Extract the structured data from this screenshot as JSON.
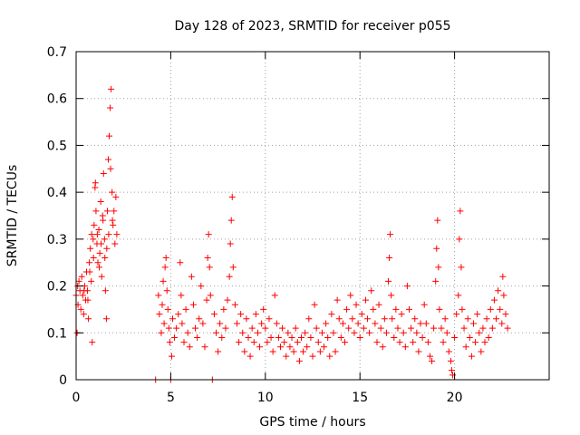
{
  "chart_data": {
    "type": "scatter",
    "title": "Day 128 of 2023, SRMTID for receiver p055",
    "xlabel": "GPS time / hours",
    "ylabel": "SRMTID / TECUs",
    "xlim": [
      0,
      25
    ],
    "ylim": [
      0,
      0.7
    ],
    "xticks": [
      0,
      5,
      10,
      15,
      20
    ],
    "yticks": [
      0,
      0.1,
      0.2,
      0.3,
      0.4,
      0.5,
      0.6,
      0.7
    ],
    "grid": true,
    "marker": "+",
    "color": "#ff0000",
    "series": [
      {
        "name": "SRMTID",
        "points": [
          [
            0.0,
            0.18
          ],
          [
            0.05,
            0.1
          ],
          [
            0.08,
            0.2
          ],
          [
            0.1,
            0.16
          ],
          [
            0.15,
            0.21
          ],
          [
            0.2,
            0.19
          ],
          [
            0.25,
            0.15
          ],
          [
            0.3,
            0.22
          ],
          [
            0.35,
            0.18
          ],
          [
            0.4,
            0.14
          ],
          [
            0.45,
            0.2
          ],
          [
            0.5,
            0.17
          ],
          [
            0.55,
            0.23
          ],
          [
            0.6,
            0.19
          ],
          [
            0.65,
            0.13
          ],
          [
            0.7,
            0.25
          ],
          [
            0.75,
            0.28
          ],
          [
            0.8,
            0.21
          ],
          [
            0.85,
            0.08
          ],
          [
            0.9,
            0.3
          ],
          [
            0.95,
            0.33
          ],
          [
            1.0,
            0.41
          ],
          [
            1.05,
            0.36
          ],
          [
            1.1,
            0.29
          ],
          [
            1.15,
            0.25
          ],
          [
            1.2,
            0.32
          ],
          [
            1.25,
            0.27
          ],
          [
            1.3,
            0.38
          ],
          [
            1.35,
            0.22
          ],
          [
            1.4,
            0.35
          ],
          [
            1.45,
            0.44
          ],
          [
            1.5,
            0.3
          ],
          [
            1.55,
            0.19
          ],
          [
            1.6,
            0.13
          ],
          [
            1.65,
            0.36
          ],
          [
            1.7,
            0.47
          ],
          [
            1.75,
            0.52
          ],
          [
            1.8,
            0.58
          ],
          [
            1.85,
            0.62
          ],
          [
            1.9,
            0.4
          ],
          [
            1.95,
            0.33
          ],
          [
            2.0,
            0.36
          ],
          [
            2.05,
            0.29
          ],
          [
            2.1,
            0.39
          ],
          [
            2.15,
            0.31
          ],
          [
            1.02,
            0.42
          ],
          [
            1.12,
            0.31
          ],
          [
            1.22,
            0.24
          ],
          [
            1.32,
            0.29
          ],
          [
            1.42,
            0.34
          ],
          [
            1.52,
            0.26
          ],
          [
            1.62,
            0.28
          ],
          [
            1.72,
            0.31
          ],
          [
            1.82,
            0.45
          ],
          [
            1.92,
            0.34
          ],
          [
            0.92,
            0.26
          ],
          [
            0.82,
            0.31
          ],
          [
            0.72,
            0.23
          ],
          [
            0.62,
            0.17
          ],
          [
            0.42,
            0.19
          ],
          [
            4.2,
            0.0
          ],
          [
            4.35,
            0.18
          ],
          [
            4.4,
            0.14
          ],
          [
            4.5,
            0.1
          ],
          [
            4.55,
            0.16
          ],
          [
            4.6,
            0.21
          ],
          [
            4.65,
            0.12
          ],
          [
            4.7,
            0.24
          ],
          [
            4.75,
            0.26
          ],
          [
            4.8,
            0.19
          ],
          [
            4.85,
            0.15
          ],
          [
            4.9,
            0.11
          ],
          [
            4.95,
            0.08
          ],
          [
            5.0,
            0.0
          ],
          [
            5.05,
            0.05
          ],
          [
            5.1,
            0.13
          ],
          [
            5.2,
            0.09
          ],
          [
            5.3,
            0.11
          ],
          [
            5.4,
            0.14
          ],
          [
            5.5,
            0.25
          ],
          [
            5.55,
            0.18
          ],
          [
            5.6,
            0.12
          ],
          [
            5.7,
            0.08
          ],
          [
            5.8,
            0.15
          ],
          [
            5.9,
            0.1
          ],
          [
            6.0,
            0.07
          ],
          [
            6.1,
            0.22
          ],
          [
            6.2,
            0.16
          ],
          [
            6.3,
            0.11
          ],
          [
            6.4,
            0.09
          ],
          [
            6.5,
            0.13
          ],
          [
            6.6,
            0.2
          ],
          [
            6.7,
            0.12
          ],
          [
            6.8,
            0.07
          ],
          [
            6.9,
            0.17
          ],
          [
            6.95,
            0.26
          ],
          [
            7.0,
            0.31
          ],
          [
            7.05,
            0.24
          ],
          [
            7.1,
            0.18
          ],
          [
            7.2,
            0.0
          ],
          [
            7.3,
            0.14
          ],
          [
            7.4,
            0.1
          ],
          [
            7.5,
            0.06
          ],
          [
            7.6,
            0.12
          ],
          [
            7.7,
            0.09
          ],
          [
            7.8,
            0.15
          ],
          [
            7.9,
            0.11
          ],
          [
            8.0,
            0.17
          ],
          [
            8.1,
            0.22
          ],
          [
            8.15,
            0.29
          ],
          [
            8.2,
            0.34
          ],
          [
            8.25,
            0.39
          ],
          [
            8.3,
            0.24
          ],
          [
            8.4,
            0.16
          ],
          [
            8.5,
            0.12
          ],
          [
            8.6,
            0.08
          ],
          [
            8.7,
            0.14
          ],
          [
            8.8,
            0.1
          ],
          [
            8.9,
            0.06
          ],
          [
            9.0,
            0.13
          ],
          [
            9.1,
            0.09
          ],
          [
            9.2,
            0.05
          ],
          [
            9.3,
            0.11
          ],
          [
            9.4,
            0.08
          ],
          [
            9.5,
            0.14
          ],
          [
            9.6,
            0.1
          ],
          [
            9.7,
            0.07
          ],
          [
            9.8,
            0.12
          ],
          [
            9.9,
            0.15
          ],
          [
            10.0,
            0.11
          ],
          [
            10.1,
            0.08
          ],
          [
            10.2,
            0.13
          ],
          [
            10.3,
            0.09
          ],
          [
            10.4,
            0.06
          ],
          [
            10.5,
            0.18
          ],
          [
            10.6,
            0.12
          ],
          [
            10.7,
            0.09
          ],
          [
            10.8,
            0.07
          ],
          [
            10.9,
            0.11
          ],
          [
            11.0,
            0.08
          ],
          [
            11.1,
            0.05
          ],
          [
            11.2,
            0.1
          ],
          [
            11.3,
            0.07
          ],
          [
            11.4,
            0.09
          ],
          [
            11.5,
            0.06
          ],
          [
            11.6,
            0.11
          ],
          [
            11.7,
            0.08
          ],
          [
            11.8,
            0.04
          ],
          [
            11.9,
            0.09
          ],
          [
            12.0,
            0.06
          ],
          [
            12.1,
            0.1
          ],
          [
            12.2,
            0.07
          ],
          [
            12.3,
            0.13
          ],
          [
            12.4,
            0.09
          ],
          [
            12.5,
            0.05
          ],
          [
            12.6,
            0.16
          ],
          [
            12.7,
            0.11
          ],
          [
            12.8,
            0.08
          ],
          [
            12.9,
            0.06
          ],
          [
            13.0,
            0.1
          ],
          [
            13.1,
            0.07
          ],
          [
            13.2,
            0.12
          ],
          [
            13.3,
            0.09
          ],
          [
            13.4,
            0.05
          ],
          [
            13.5,
            0.14
          ],
          [
            13.6,
            0.1
          ],
          [
            13.7,
            0.06
          ],
          [
            13.8,
            0.17
          ],
          [
            13.9,
            0.13
          ],
          [
            14.0,
            0.09
          ],
          [
            14.1,
            0.12
          ],
          [
            14.2,
            0.08
          ],
          [
            14.3,
            0.15
          ],
          [
            14.4,
            0.11
          ],
          [
            14.5,
            0.18
          ],
          [
            14.6,
            0.13
          ],
          [
            14.7,
            0.1
          ],
          [
            14.8,
            0.16
          ],
          [
            14.9,
            0.12
          ],
          [
            15.0,
            0.09
          ],
          [
            15.1,
            0.14
          ],
          [
            15.2,
            0.11
          ],
          [
            15.3,
            0.17
          ],
          [
            15.4,
            0.13
          ],
          [
            15.5,
            0.1
          ],
          [
            15.6,
            0.19
          ],
          [
            15.7,
            0.15
          ],
          [
            15.8,
            0.12
          ],
          [
            15.9,
            0.08
          ],
          [
            16.0,
            0.16
          ],
          [
            16.1,
            0.11
          ],
          [
            16.2,
            0.07
          ],
          [
            16.3,
            0.13
          ],
          [
            16.4,
            0.1
          ],
          [
            16.5,
            0.21
          ],
          [
            16.55,
            0.26
          ],
          [
            16.6,
            0.31
          ],
          [
            16.65,
            0.18
          ],
          [
            16.7,
            0.13
          ],
          [
            16.8,
            0.09
          ],
          [
            16.9,
            0.15
          ],
          [
            17.0,
            0.11
          ],
          [
            17.1,
            0.08
          ],
          [
            17.2,
            0.14
          ],
          [
            17.3,
            0.1
          ],
          [
            17.4,
            0.07
          ],
          [
            17.5,
            0.2
          ],
          [
            17.6,
            0.15
          ],
          [
            17.7,
            0.11
          ],
          [
            17.8,
            0.08
          ],
          [
            17.9,
            0.13
          ],
          [
            18.0,
            0.1
          ],
          [
            18.1,
            0.06
          ],
          [
            18.2,
            0.12
          ],
          [
            18.3,
            0.09
          ],
          [
            18.4,
            0.16
          ],
          [
            18.5,
            0.12
          ],
          [
            18.6,
            0.08
          ],
          [
            18.7,
            0.05
          ],
          [
            18.8,
            0.04
          ],
          [
            18.9,
            0.11
          ],
          [
            19.0,
            0.21
          ],
          [
            19.05,
            0.28
          ],
          [
            19.1,
            0.34
          ],
          [
            19.15,
            0.24
          ],
          [
            19.2,
            0.15
          ],
          [
            19.3,
            0.11
          ],
          [
            19.4,
            0.08
          ],
          [
            19.5,
            0.13
          ],
          [
            19.6,
            0.1
          ],
          [
            19.7,
            0.06
          ],
          [
            19.8,
            0.04
          ],
          [
            19.85,
            0.02
          ],
          [
            19.9,
            0.01
          ],
          [
            20.0,
            0.09
          ],
          [
            20.1,
            0.14
          ],
          [
            20.2,
            0.18
          ],
          [
            20.25,
            0.3
          ],
          [
            20.3,
            0.36
          ],
          [
            20.35,
            0.24
          ],
          [
            20.4,
            0.15
          ],
          [
            20.5,
            0.11
          ],
          [
            20.6,
            0.07
          ],
          [
            20.7,
            0.13
          ],
          [
            20.8,
            0.09
          ],
          [
            20.9,
            0.05
          ],
          [
            21.0,
            0.12
          ],
          [
            21.1,
            0.08
          ],
          [
            21.2,
            0.14
          ],
          [
            21.3,
            0.1
          ],
          [
            21.4,
            0.06
          ],
          [
            21.5,
            0.11
          ],
          [
            21.6,
            0.08
          ],
          [
            21.7,
            0.13
          ],
          [
            21.8,
            0.09
          ],
          [
            21.9,
            0.15
          ],
          [
            22.0,
            0.11
          ],
          [
            22.1,
            0.17
          ],
          [
            22.2,
            0.13
          ],
          [
            22.3,
            0.19
          ],
          [
            22.4,
            0.15
          ],
          [
            22.5,
            0.12
          ],
          [
            22.55,
            0.22
          ],
          [
            22.6,
            0.18
          ],
          [
            22.7,
            0.14
          ],
          [
            22.8,
            0.11
          ]
        ]
      }
    ]
  }
}
